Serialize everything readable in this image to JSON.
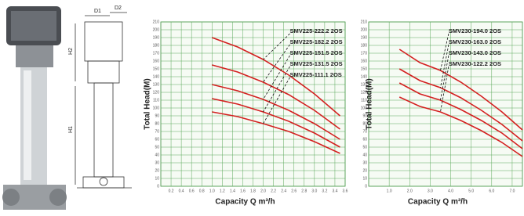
{
  "drawing": {
    "labels": [
      "D1",
      "D2",
      "H2",
      "H1"
    ]
  },
  "chart_data": [
    {
      "type": "line",
      "y_label": "Total Head(M)",
      "x_label": "Capacity  Q m³/h",
      "xlim": [
        0,
        3.6
      ],
      "ylim": [
        0,
        210
      ],
      "grid": true,
      "xticks": [
        0.2,
        0.4,
        0.6,
        0.8,
        {
          "value": 1,
          "label": "1.0"
        },
        1.2,
        1.4,
        1.6,
        1.8,
        {
          "value": 2,
          "label": "2.0"
        },
        2.2,
        2.4,
        2.6,
        2.8,
        {
          "value": 3,
          "label": "3.0"
        },
        3.2,
        3.4,
        3.6
      ],
      "yticks": [
        0,
        10,
        20,
        30,
        40,
        50,
        60,
        70,
        80,
        90,
        100,
        110,
        120,
        130,
        140,
        150,
        160,
        170,
        180,
        190,
        200,
        210
      ],
      "x": [
        1.0,
        1.5,
        2.0,
        2.5,
        3.0,
        3.5
      ],
      "series": [
        {
          "name": "SMV225-222.2 2OS",
          "color": "#d42020",
          "values": [
            190,
            178,
            162,
            142,
            118,
            90
          ]
        },
        {
          "name": "SMV225-182.2 2OS",
          "color": "#d42020",
          "values": [
            155,
            146,
            133,
            117,
            97,
            73
          ]
        },
        {
          "name": "SMV225-151.5 2OS",
          "color": "#d42020",
          "values": [
            130,
            122,
            111,
            97,
            80,
            60
          ]
        },
        {
          "name": "SMV225-131.5 2OS",
          "color": "#d42020",
          "values": [
            112,
            105,
            95,
            83,
            68,
            50
          ]
        },
        {
          "name": "SMV225-111.1 2OS",
          "color": "#d42020",
          "values": [
            95,
            89,
            80,
            70,
            57,
            42
          ]
        }
      ]
    },
    {
      "type": "line",
      "y_label": "Total Head(M)",
      "x_label": "Capacity  Q m³/h",
      "xlim": [
        0,
        7.5
      ],
      "ylim": [
        0,
        210
      ],
      "grid": true,
      "xticks": [
        {
          "value": 1,
          "label": "1.0"
        },
        {
          "value": 2,
          "label": "2.0"
        },
        {
          "value": 3,
          "label": "3.0"
        },
        {
          "value": 4,
          "label": "4.0"
        },
        {
          "value": 5,
          "label": "5.0"
        },
        {
          "value": 6,
          "label": "6.0"
        },
        {
          "value": 7,
          "label": "7.0"
        }
      ],
      "yticks": [
        0,
        10,
        20,
        30,
        40,
        50,
        60,
        70,
        80,
        90,
        100,
        110,
        120,
        130,
        140,
        150,
        160,
        170,
        180,
        190,
        200,
        210
      ],
      "x": [
        1.5,
        2.5,
        3.5,
        4.5,
        5.5,
        6.5,
        7.5
      ],
      "series": [
        {
          "name": "SMV230-194.0 2OS",
          "color": "#d42020",
          "values": [
            175,
            158,
            148,
            133,
            115,
            95,
            72
          ]
        },
        {
          "name": "SMV230-163.0 2OS",
          "color": "#d42020",
          "values": [
            150,
            135,
            126,
            113,
            97,
            79,
            58
          ]
        },
        {
          "name": "SMV230-143.0 2OS",
          "color": "#d42020",
          "values": [
            132,
            118,
            110,
            98,
            84,
            68,
            48
          ]
        },
        {
          "name": "SMV230-122.2 2OS",
          "color": "#d42020",
          "values": [
            114,
            102,
            95,
            84,
            71,
            56,
            38
          ]
        }
      ]
    }
  ]
}
